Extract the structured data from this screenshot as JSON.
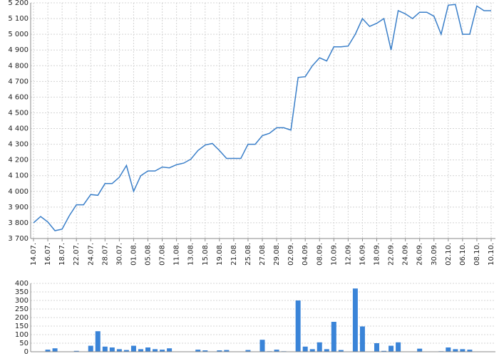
{
  "chart_data": [
    {
      "type": "line",
      "categories": [
        "14.07.",
        null,
        "16.07.",
        null,
        "18.07.",
        null,
        "22.07.",
        null,
        "24.07.",
        null,
        "28.07.",
        null,
        "30.07.",
        null,
        "01.08.",
        null,
        "05.08.",
        null,
        "07.08.",
        null,
        "11.08.",
        null,
        "13.08.",
        null,
        "15.08.",
        null,
        "19.08.",
        null,
        "21.08.",
        null,
        "25.08.",
        null,
        "27.08.",
        null,
        "29.08.",
        null,
        "02.09.",
        null,
        "04.09.",
        null,
        "08.09.",
        null,
        "10.09.",
        null,
        "12.09.",
        null,
        "16.09.",
        null,
        "18.09.",
        null,
        "22.09.",
        null,
        "24.09.",
        null,
        "26.09.",
        null,
        "30.09.",
        null,
        "02.10.",
        null,
        "06.10.",
        null,
        "08.10.",
        null,
        "10.10."
      ],
      "series": [
        {
          "color": "#3a7fc9",
          "values": [
            3800,
            3840,
            3805,
            3750,
            3760,
            3845,
            3915,
            3915,
            3980,
            3975,
            4050,
            4050,
            4090,
            4165,
            4000,
            4100,
            4130,
            4130,
            4155,
            4150,
            4170,
            4180,
            4205,
            4260,
            4295,
            4305,
            4260,
            4210,
            4210,
            4210,
            4300,
            4300,
            4355,
            4370,
            4405,
            4405,
            4390,
            4725,
            4730,
            4800,
            4850,
            4830,
            4920,
            4920,
            4925,
            5000,
            5100,
            5050,
            5070,
            5100,
            4900,
            5150,
            5130,
            5100,
            5140,
            5140,
            5115,
            5000,
            5185,
            5190,
            5000,
            5000,
            5180,
            5150,
            5150
          ]
        }
      ],
      "ylim": [
        3700,
        5200
      ],
      "yticks": [
        {
          "value": 3700,
          "label": "3 700"
        },
        {
          "value": 3800,
          "label": "3 800"
        },
        {
          "value": 3900,
          "label": "3 900"
        },
        {
          "value": 4000,
          "label": "4 000"
        },
        {
          "value": 4100,
          "label": "4 100"
        },
        {
          "value": 4200,
          "label": "4 200"
        },
        {
          "value": 4300,
          "label": "4 300"
        },
        {
          "value": 4400,
          "label": "4 400"
        },
        {
          "value": 4500,
          "label": "4 500"
        },
        {
          "value": 4600,
          "label": "4 600"
        },
        {
          "value": 4700,
          "label": "4 700"
        },
        {
          "value": 4800,
          "label": "4 800"
        },
        {
          "value": 4900,
          "label": "4 900"
        },
        {
          "value": 5000,
          "label": "5 000"
        },
        {
          "value": 5100,
          "label": "5 100"
        },
        {
          "value": 5200,
          "label": "5 200"
        }
      ],
      "grid": true
    },
    {
      "type": "bar",
      "color": "#3a84d8",
      "values": [
        0,
        2,
        12,
        20,
        0,
        0,
        5,
        0,
        35,
        120,
        30,
        25,
        15,
        10,
        35,
        15,
        25,
        15,
        12,
        20,
        0,
        0,
        0,
        12,
        8,
        0,
        8,
        10,
        0,
        0,
        10,
        0,
        70,
        3,
        12,
        3,
        0,
        300,
        30,
        15,
        55,
        15,
        175,
        10,
        0,
        370,
        148,
        0,
        50,
        5,
        35,
        55,
        0,
        0,
        18,
        0,
        0,
        3,
        25,
        15,
        15,
        12,
        0,
        0,
        0
      ],
      "ylim": [
        0,
        400
      ],
      "yticks": [
        0,
        50,
        100,
        150,
        200,
        250,
        300,
        350,
        400
      ],
      "grid": true
    }
  ]
}
